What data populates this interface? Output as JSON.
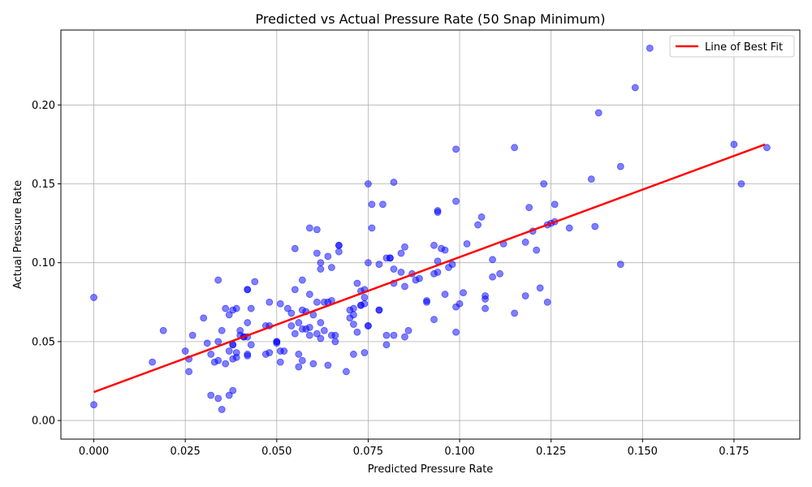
{
  "chart_data": {
    "type": "scatter",
    "title": "Predicted vs Actual Pressure Rate (50 Snap Minimum)",
    "xlabel": "Predicted Pressure Rate",
    "ylabel": "Actual Pressure Rate",
    "xlim": [
      -0.009,
      0.193
    ],
    "ylim": [
      -0.0118,
      0.2475
    ],
    "xticks": [
      "0.000",
      "0.025",
      "0.050",
      "0.075",
      "0.100",
      "0.125",
      "0.150",
      "0.175"
    ],
    "yticks": [
      "0.00",
      "0.05",
      "0.10",
      "0.15",
      "0.20"
    ],
    "grid": true,
    "point_color": "#0000ff",
    "fit_line": {
      "name": "Line of Best Fit",
      "color": "#ff0000",
      "x": [
        0.0,
        0.1835
      ],
      "y": [
        0.018,
        0.175
      ]
    },
    "legend": {
      "placement": "upper-right",
      "entries": [
        "Line of Best Fit"
      ]
    },
    "points": [
      [
        0.0,
        0.078
      ],
      [
        0.0,
        0.01
      ],
      [
        0.016,
        0.037
      ],
      [
        0.019,
        0.057
      ],
      [
        0.025,
        0.044
      ],
      [
        0.026,
        0.039
      ],
      [
        0.026,
        0.031
      ],
      [
        0.027,
        0.054
      ],
      [
        0.03,
        0.065
      ],
      [
        0.031,
        0.049
      ],
      [
        0.032,
        0.042
      ],
      [
        0.032,
        0.016
      ],
      [
        0.033,
        0.037
      ],
      [
        0.034,
        0.014
      ],
      [
        0.034,
        0.05
      ],
      [
        0.034,
        0.038
      ],
      [
        0.034,
        0.089
      ],
      [
        0.035,
        0.007
      ],
      [
        0.035,
        0.057
      ],
      [
        0.036,
        0.071
      ],
      [
        0.036,
        0.036
      ],
      [
        0.037,
        0.016
      ],
      [
        0.037,
        0.044
      ],
      [
        0.037,
        0.067
      ],
      [
        0.038,
        0.019
      ],
      [
        0.038,
        0.07
      ],
      [
        0.038,
        0.048
      ],
      [
        0.038,
        0.048
      ],
      [
        0.038,
        0.039
      ],
      [
        0.039,
        0.071
      ],
      [
        0.039,
        0.043
      ],
      [
        0.039,
        0.04
      ],
      [
        0.04,
        0.057
      ],
      [
        0.04,
        0.054
      ],
      [
        0.041,
        0.053
      ],
      [
        0.041,
        0.053
      ],
      [
        0.042,
        0.083
      ],
      [
        0.042,
        0.083
      ],
      [
        0.042,
        0.062
      ],
      [
        0.042,
        0.042
      ],
      [
        0.042,
        0.041
      ],
      [
        0.042,
        0.053
      ],
      [
        0.043,
        0.071
      ],
      [
        0.043,
        0.048
      ],
      [
        0.044,
        0.088
      ],
      [
        0.047,
        0.042
      ],
      [
        0.047,
        0.06
      ],
      [
        0.048,
        0.075
      ],
      [
        0.048,
        0.06
      ],
      [
        0.048,
        0.043
      ],
      [
        0.05,
        0.05
      ],
      [
        0.05,
        0.049
      ],
      [
        0.05,
        0.05
      ],
      [
        0.051,
        0.044
      ],
      [
        0.051,
        0.037
      ],
      [
        0.051,
        0.074
      ],
      [
        0.052,
        0.044
      ],
      [
        0.053,
        0.071
      ],
      [
        0.054,
        0.068
      ],
      [
        0.054,
        0.06
      ],
      [
        0.055,
        0.109
      ],
      [
        0.055,
        0.083
      ],
      [
        0.055,
        0.055
      ],
      [
        0.056,
        0.062
      ],
      [
        0.056,
        0.042
      ],
      [
        0.056,
        0.034
      ],
      [
        0.057,
        0.089
      ],
      [
        0.057,
        0.07
      ],
      [
        0.057,
        0.058
      ],
      [
        0.057,
        0.038
      ],
      [
        0.058,
        0.069
      ],
      [
        0.058,
        0.058
      ],
      [
        0.059,
        0.122
      ],
      [
        0.059,
        0.08
      ],
      [
        0.059,
        0.059
      ],
      [
        0.059,
        0.054
      ],
      [
        0.06,
        0.067
      ],
      [
        0.06,
        0.036
      ],
      [
        0.061,
        0.121
      ],
      [
        0.061,
        0.106
      ],
      [
        0.061,
        0.075
      ],
      [
        0.061,
        0.055
      ],
      [
        0.062,
        0.1
      ],
      [
        0.062,
        0.096
      ],
      [
        0.062,
        0.062
      ],
      [
        0.062,
        0.052
      ],
      [
        0.063,
        0.075
      ],
      [
        0.063,
        0.057
      ],
      [
        0.064,
        0.035
      ],
      [
        0.064,
        0.104
      ],
      [
        0.064,
        0.075
      ],
      [
        0.065,
        0.097
      ],
      [
        0.065,
        0.054
      ],
      [
        0.065,
        0.076
      ],
      [
        0.066,
        0.05
      ],
      [
        0.066,
        0.054
      ],
      [
        0.067,
        0.111
      ],
      [
        0.067,
        0.111
      ],
      [
        0.067,
        0.107
      ],
      [
        0.069,
        0.031
      ],
      [
        0.07,
        0.07
      ],
      [
        0.07,
        0.065
      ],
      [
        0.071,
        0.042
      ],
      [
        0.071,
        0.071
      ],
      [
        0.071,
        0.067
      ],
      [
        0.071,
        0.061
      ],
      [
        0.072,
        0.087
      ],
      [
        0.072,
        0.056
      ],
      [
        0.073,
        0.082
      ],
      [
        0.073,
        0.073
      ],
      [
        0.073,
        0.073
      ],
      [
        0.074,
        0.083
      ],
      [
        0.074,
        0.078
      ],
      [
        0.074,
        0.074
      ],
      [
        0.074,
        0.043
      ],
      [
        0.075,
        0.15
      ],
      [
        0.075,
        0.1
      ],
      [
        0.075,
        0.06
      ],
      [
        0.075,
        0.06
      ],
      [
        0.076,
        0.137
      ],
      [
        0.076,
        0.122
      ],
      [
        0.078,
        0.099
      ],
      [
        0.078,
        0.07
      ],
      [
        0.078,
        0.07
      ],
      [
        0.079,
        0.137
      ],
      [
        0.08,
        0.103
      ],
      [
        0.08,
        0.054
      ],
      [
        0.08,
        0.048
      ],
      [
        0.081,
        0.103
      ],
      [
        0.081,
        0.103
      ],
      [
        0.082,
        0.151
      ],
      [
        0.082,
        0.096
      ],
      [
        0.082,
        0.087
      ],
      [
        0.082,
        0.054
      ],
      [
        0.084,
        0.094
      ],
      [
        0.084,
        0.106
      ],
      [
        0.085,
        0.11
      ],
      [
        0.085,
        0.085
      ],
      [
        0.085,
        0.053
      ],
      [
        0.086,
        0.057
      ],
      [
        0.087,
        0.093
      ],
      [
        0.088,
        0.089
      ],
      [
        0.089,
        0.09
      ],
      [
        0.091,
        0.076
      ],
      [
        0.091,
        0.075
      ],
      [
        0.093,
        0.111
      ],
      [
        0.093,
        0.064
      ],
      [
        0.093,
        0.093
      ],
      [
        0.094,
        0.094
      ],
      [
        0.094,
        0.101
      ],
      [
        0.094,
        0.133
      ],
      [
        0.094,
        0.132
      ],
      [
        0.095,
        0.109
      ],
      [
        0.096,
        0.108
      ],
      [
        0.096,
        0.08
      ],
      [
        0.097,
        0.097
      ],
      [
        0.098,
        0.099
      ],
      [
        0.099,
        0.172
      ],
      [
        0.099,
        0.139
      ],
      [
        0.099,
        0.056
      ],
      [
        0.099,
        0.072
      ],
      [
        0.1,
        0.074
      ],
      [
        0.101,
        0.081
      ],
      [
        0.102,
        0.112
      ],
      [
        0.105,
        0.124
      ],
      [
        0.106,
        0.129
      ],
      [
        0.107,
        0.071
      ],
      [
        0.107,
        0.077
      ],
      [
        0.107,
        0.079
      ],
      [
        0.109,
        0.102
      ],
      [
        0.109,
        0.091
      ],
      [
        0.111,
        0.093
      ],
      [
        0.112,
        0.112
      ],
      [
        0.115,
        0.173
      ],
      [
        0.115,
        0.068
      ],
      [
        0.118,
        0.113
      ],
      [
        0.118,
        0.079
      ],
      [
        0.119,
        0.135
      ],
      [
        0.12,
        0.12
      ],
      [
        0.121,
        0.108
      ],
      [
        0.122,
        0.084
      ],
      [
        0.123,
        0.15
      ],
      [
        0.124,
        0.124
      ],
      [
        0.124,
        0.075
      ],
      [
        0.125,
        0.125
      ],
      [
        0.126,
        0.137
      ],
      [
        0.126,
        0.126
      ],
      [
        0.13,
        0.122
      ],
      [
        0.136,
        0.153
      ],
      [
        0.137,
        0.123
      ],
      [
        0.138,
        0.195
      ],
      [
        0.144,
        0.161
      ],
      [
        0.144,
        0.099
      ],
      [
        0.148,
        0.211
      ],
      [
        0.152,
        0.236
      ],
      [
        0.175,
        0.175
      ],
      [
        0.177,
        0.15
      ],
      [
        0.184,
        0.173
      ]
    ]
  }
}
